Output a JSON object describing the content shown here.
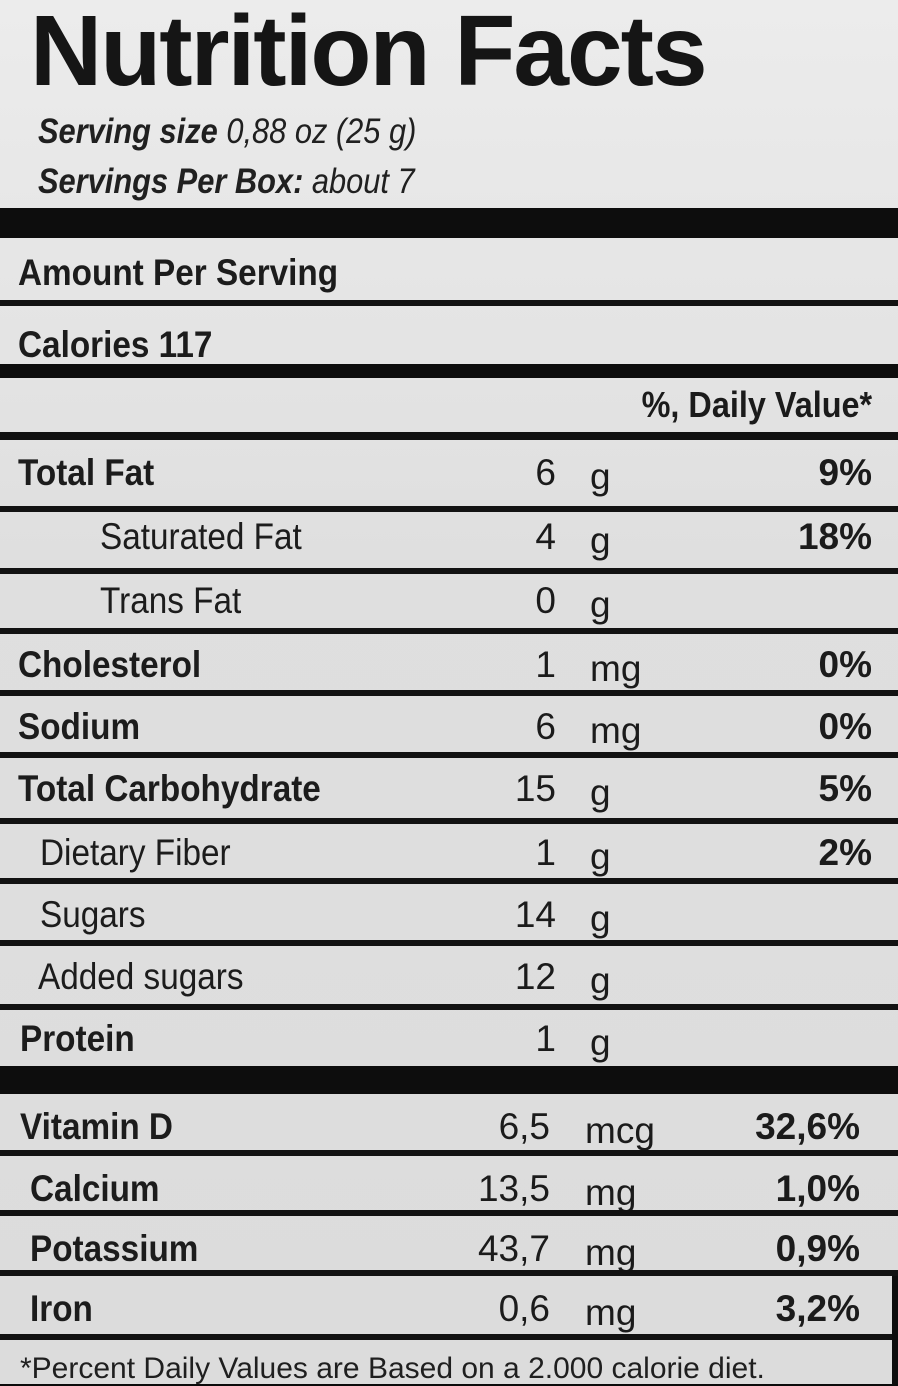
{
  "title": "Nutrition Facts",
  "serving_size_label": "Serving size",
  "serving_size_value": "0,88 oz (25 g)",
  "servings_label": "Servings Per Box:",
  "servings_value": "about 7",
  "amount_per_serving": "Amount Per Serving",
  "calories": "Calories 117",
  "daily_value_header": "%, Daily Value*",
  "nutrients": [
    {
      "name": "Total Fat",
      "amount": "6",
      "unit": "g",
      "dv": "9%"
    },
    {
      "name": "Saturated Fat",
      "amount": "4",
      "unit": "g",
      "dv": "18%"
    },
    {
      "name": "Trans Fat",
      "amount": "0",
      "unit": "g",
      "dv": ""
    },
    {
      "name": "Cholesterol",
      "amount": "1",
      "unit": "mg",
      "dv": "0%"
    },
    {
      "name": "Sodium",
      "amount": "6",
      "unit": "mg",
      "dv": "0%"
    },
    {
      "name": "Total Carbohydrate",
      "amount": "15",
      "unit": "g",
      "dv": "5%"
    },
    {
      "name": "Dietary Fiber",
      "amount": "1",
      "unit": "g",
      "dv": "2%"
    },
    {
      "name": "Sugars",
      "amount": "14",
      "unit": "g",
      "dv": ""
    },
    {
      "name": "Added sugars",
      "amount": "12",
      "unit": "g",
      "dv": ""
    },
    {
      "name": "Protein",
      "amount": "1",
      "unit": "g",
      "dv": ""
    }
  ],
  "vitamins": [
    {
      "name": "Vitamin D",
      "amount": "6,5",
      "unit": "mcg",
      "dv": "32,6%"
    },
    {
      "name": "Calcium",
      "amount": "13,5",
      "unit": "mg",
      "dv": "1,0%"
    },
    {
      "name": "Potassium",
      "amount": "43,7",
      "unit": "mg",
      "dv": "0,9%"
    },
    {
      "name": "Iron",
      "amount": "0,6",
      "unit": "mg",
      "dv": "3,2%"
    }
  ],
  "footnote": "*Percent Daily Values are Based on a 2.000 calorie diet."
}
